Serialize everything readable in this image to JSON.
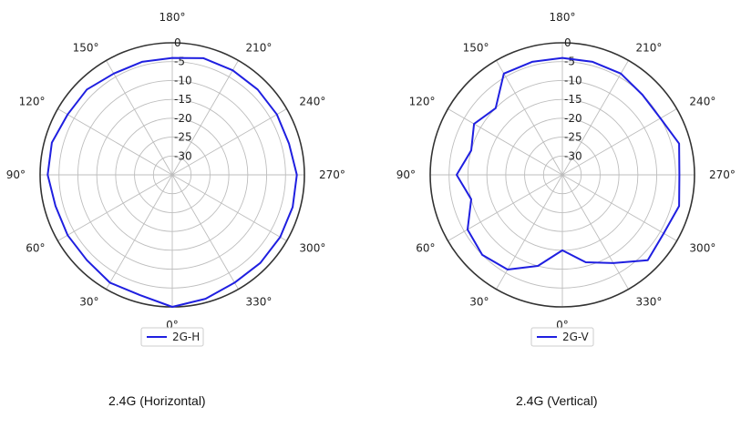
{
  "chart_data": [
    {
      "type": "line",
      "projection": "polar",
      "caption": "2.4G (Horizontal)",
      "legend_position": "bottom",
      "series": [
        {
          "name": "2G-H",
          "color": "#1f1fe0",
          "theta_deg": [
            0,
            15,
            30,
            45,
            60,
            75,
            90,
            105,
            120,
            135,
            150,
            165,
            180,
            195,
            210,
            225,
            240,
            255,
            270,
            285,
            300,
            315,
            330,
            345
          ],
          "r_db": [
            0,
            -2,
            -2,
            -3,
            -3,
            -3,
            -2,
            -2,
            -3,
            -3,
            -4,
            -4,
            -4,
            -3,
            -3,
            -3,
            -3,
            -3,
            -2,
            -2,
            -2,
            -2,
            -2,
            -1
          ]
        }
      ],
      "r_ticks": [
        "0",
        "-5",
        "-10",
        "-15",
        "-20",
        "-25",
        "-30"
      ],
      "r_range": [
        -35,
        0
      ],
      "angle_labels": [
        "0°",
        "30°",
        "60°",
        "90°",
        "120°",
        "150°",
        "180°",
        "210°",
        "240°",
        "270°",
        "300°",
        "330°"
      ],
      "grid": true
    },
    {
      "type": "line",
      "projection": "polar",
      "caption": "2.4G (Vertical)",
      "legend_position": "bottom",
      "series": [
        {
          "name": "2G-V",
          "color": "#1f1fe0",
          "theta_deg": [
            0,
            15,
            30,
            45,
            60,
            75,
            90,
            105,
            120,
            135,
            150,
            165,
            180,
            195,
            210,
            225,
            240,
            255,
            270,
            285,
            300,
            315,
            330,
            345
          ],
          "r_db": [
            -15,
            -10,
            -6,
            -5,
            -6,
            -10,
            -7,
            -10,
            -8,
            -10,
            -4,
            -4,
            -4,
            -4,
            -4,
            -5,
            -5,
            -3,
            -4,
            -3,
            -4,
            -3,
            -8,
            -11
          ]
        }
      ],
      "r_ticks": [
        "0",
        "-5",
        "-10",
        "-15",
        "-20",
        "-25",
        "-30"
      ],
      "r_range": [
        -35,
        0
      ],
      "angle_labels": [
        "0°",
        "30°",
        "60°",
        "90°",
        "120°",
        "150°",
        "180°",
        "210°",
        "240°",
        "270°",
        "300°",
        "330°"
      ],
      "grid": true
    }
  ]
}
